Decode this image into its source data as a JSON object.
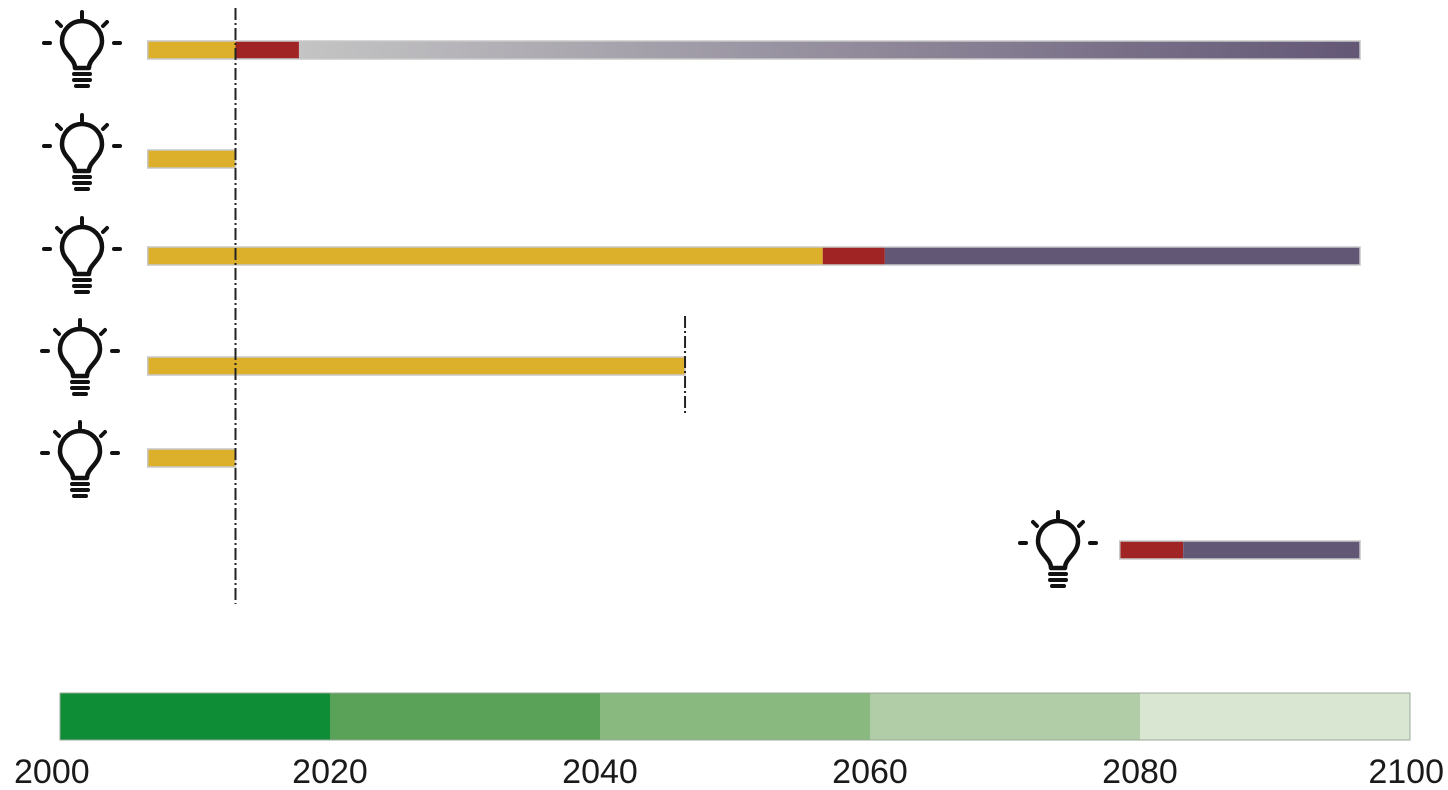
{
  "chart_data": {
    "type": "bar",
    "x_axis": {
      "min": 2000,
      "max": 2100,
      "ticks": [
        2000,
        2020,
        2040,
        2060,
        2080,
        2100
      ],
      "tick_labels": [
        "2000",
        "2020",
        "2040",
        "2060",
        "2080",
        "2100"
      ]
    },
    "reference_year": 2013,
    "colors": {
      "yellow": "#dcb02a",
      "red": "#a02424",
      "purple": "#635776",
      "gray": "#c4c4c4"
    },
    "rows": [
      {
        "icon": "lightbulb-icon",
        "segments": [
          {
            "color": "yellow",
            "start": 2006.5,
            "end": 2013
          },
          {
            "color": "red",
            "start": 2013,
            "end": 2017.7
          },
          {
            "color": "gray-to-purple-gradient",
            "start": 2017.7,
            "end": 2096.3
          }
        ]
      },
      {
        "icon": "lightbulb-icon",
        "segments": [
          {
            "color": "yellow",
            "start": 2006.5,
            "end": 2013
          }
        ]
      },
      {
        "icon": "lightbulb-icon",
        "segments": [
          {
            "color": "yellow",
            "start": 2006.5,
            "end": 2056.5
          },
          {
            "color": "red",
            "start": 2056.5,
            "end": 2061.1
          },
          {
            "color": "purple",
            "start": 2061.1,
            "end": 2096.3
          }
        ]
      },
      {
        "icon": "lightbulb-icon",
        "segments": [
          {
            "color": "yellow",
            "start": 2006.5,
            "end": 2046.3
          }
        ],
        "end_marker": 2046.3
      },
      {
        "icon": "lightbulb-icon",
        "segments": [
          {
            "color": "yellow",
            "start": 2006.5,
            "end": 2013
          }
        ]
      },
      {
        "icon": "lightbulb-icon",
        "segments": [
          {
            "color": "red",
            "start": 2078.5,
            "end": 2083.2
          },
          {
            "color": "purple",
            "start": 2083.2,
            "end": 2096.3
          }
        ]
      }
    ],
    "color_scale": [
      {
        "start": 2000,
        "end": 2020,
        "color": "#0f8c36"
      },
      {
        "start": 2020,
        "end": 2040,
        "color": "#5ba259"
      },
      {
        "start": 2040,
        "end": 2060,
        "color": "#8ab97f"
      },
      {
        "start": 2060,
        "end": 2080,
        "color": "#b1cda7"
      },
      {
        "start": 2080,
        "end": 2100,
        "color": "#d8e6d2"
      }
    ]
  }
}
